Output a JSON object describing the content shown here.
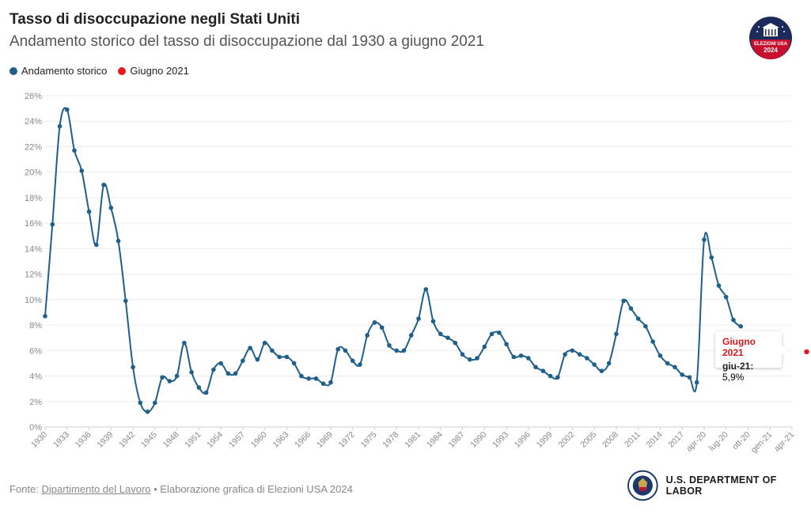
{
  "header": {
    "title": "Tasso di disoccupazione negli Stati Uniti",
    "subtitle": "Andamento storico del tasso di disoccupazione dal 1930 a giugno 2021"
  },
  "legend": [
    {
      "label": "Andamento storico",
      "color": "#1f5f8b"
    },
    {
      "label": "Giugno 2021",
      "color": "#e8191c"
    }
  ],
  "badge": {
    "line1": "ELEZIONI USA",
    "line2": "2024"
  },
  "tooltip": {
    "title": "Giugno 2021",
    "key": "giu-21:",
    "value": "5,9%"
  },
  "footer": {
    "prefix": "Fonte:",
    "source_link": "Dipartimento del Lavoro",
    "suffix": "• Elaborazione grafica di Elezioni USA 2024",
    "dept_label": "U.S. DEPARTMENT OF LABOR"
  },
  "chart_data": {
    "type": "line",
    "ylim": [
      0,
      26
    ],
    "yticks": [
      0,
      2,
      4,
      6,
      8,
      10,
      12,
      14,
      16,
      18,
      20,
      22,
      24,
      26
    ],
    "ytick_labels": [
      "0%",
      "2%",
      "4%",
      "6%",
      "8%",
      "10%",
      "12%",
      "14%",
      "16%",
      "18%",
      "20%",
      "22%",
      "24%",
      "26%"
    ],
    "xtick_labels": [
      "1930",
      "1933",
      "1936",
      "1939",
      "1942",
      "1945",
      "1948",
      "1951",
      "1954",
      "1957",
      "1960",
      "1963",
      "1966",
      "1969",
      "1972",
      "1975",
      "1978",
      "1981",
      "1984",
      "1987",
      "1990",
      "1993",
      "1996",
      "1999",
      "2002",
      "2005",
      "2008",
      "2011",
      "2014",
      "2017",
      "apr-20",
      "lug-20",
      "ott-20",
      "gen-21",
      "apr-21"
    ],
    "grid": true,
    "series": [
      {
        "name": "Andamento storico",
        "color": "#1f5f8b",
        "x": [
          "1930",
          "1931",
          "1932",
          "1933",
          "1934",
          "1935",
          "1936",
          "1937",
          "1938",
          "1939",
          "1940",
          "1941",
          "1942",
          "1943",
          "1944",
          "1945",
          "1946",
          "1947",
          "1948",
          "1949",
          "1950",
          "1951",
          "1952",
          "1953",
          "1954",
          "1955",
          "1956",
          "1957",
          "1958",
          "1959",
          "1960",
          "1961",
          "1962",
          "1963",
          "1964",
          "1965",
          "1966",
          "1967",
          "1968",
          "1969",
          "1970",
          "1971",
          "1972",
          "1973",
          "1974",
          "1975",
          "1976",
          "1977",
          "1978",
          "1979",
          "1980",
          "1981",
          "1982",
          "1983",
          "1984",
          "1985",
          "1986",
          "1987",
          "1988",
          "1989",
          "1990",
          "1991",
          "1992",
          "1993",
          "1994",
          "1995",
          "1996",
          "1997",
          "1998",
          "1999",
          "2000",
          "2001",
          "2002",
          "2003",
          "2004",
          "2005",
          "2006",
          "2007",
          "2008",
          "2009",
          "2010",
          "2011",
          "2012",
          "2013",
          "2014",
          "2015",
          "2016",
          "2017",
          "2018",
          "2019",
          "apr-20",
          "mag-20",
          "giu-20",
          "lug-20",
          "ago-20",
          "set-20"
        ],
        "values": [
          8.7,
          15.9,
          23.6,
          24.9,
          21.7,
          20.1,
          16.9,
          14.3,
          19.0,
          17.2,
          14.6,
          9.9,
          4.7,
          1.9,
          1.2,
          1.9,
          3.9,
          3.6,
          4.0,
          6.6,
          4.3,
          3.1,
          2.7,
          4.5,
          5.0,
          4.2,
          4.2,
          5.2,
          6.2,
          5.3,
          6.6,
          6.0,
          5.5,
          5.5,
          5.0,
          4.0,
          3.8,
          3.8,
          3.4,
          3.5,
          6.1,
          6.0,
          5.2,
          4.9,
          7.2,
          8.2,
          7.8,
          6.4,
          6.0,
          6.0,
          7.2,
          8.5,
          10.8,
          8.3,
          7.3,
          7.0,
          6.6,
          5.7,
          5.3,
          5.4,
          6.3,
          7.3,
          7.4,
          6.5,
          5.5,
          5.6,
          5.4,
          4.7,
          4.4,
          4.0,
          3.9,
          5.7,
          6.0,
          5.7,
          5.4,
          4.9,
          4.4,
          5.0,
          7.3,
          9.9,
          9.3,
          8.5,
          7.9,
          6.7,
          5.6,
          5.0,
          4.7,
          4.1,
          3.9,
          3.5,
          14.7,
          13.3,
          11.1,
          10.2,
          8.4,
          7.9
        ]
      },
      {
        "name": "Giugno 2021",
        "color": "#e8191c",
        "x": [
          "giu-21"
        ],
        "values": [
          5.9
        ]
      }
    ]
  }
}
